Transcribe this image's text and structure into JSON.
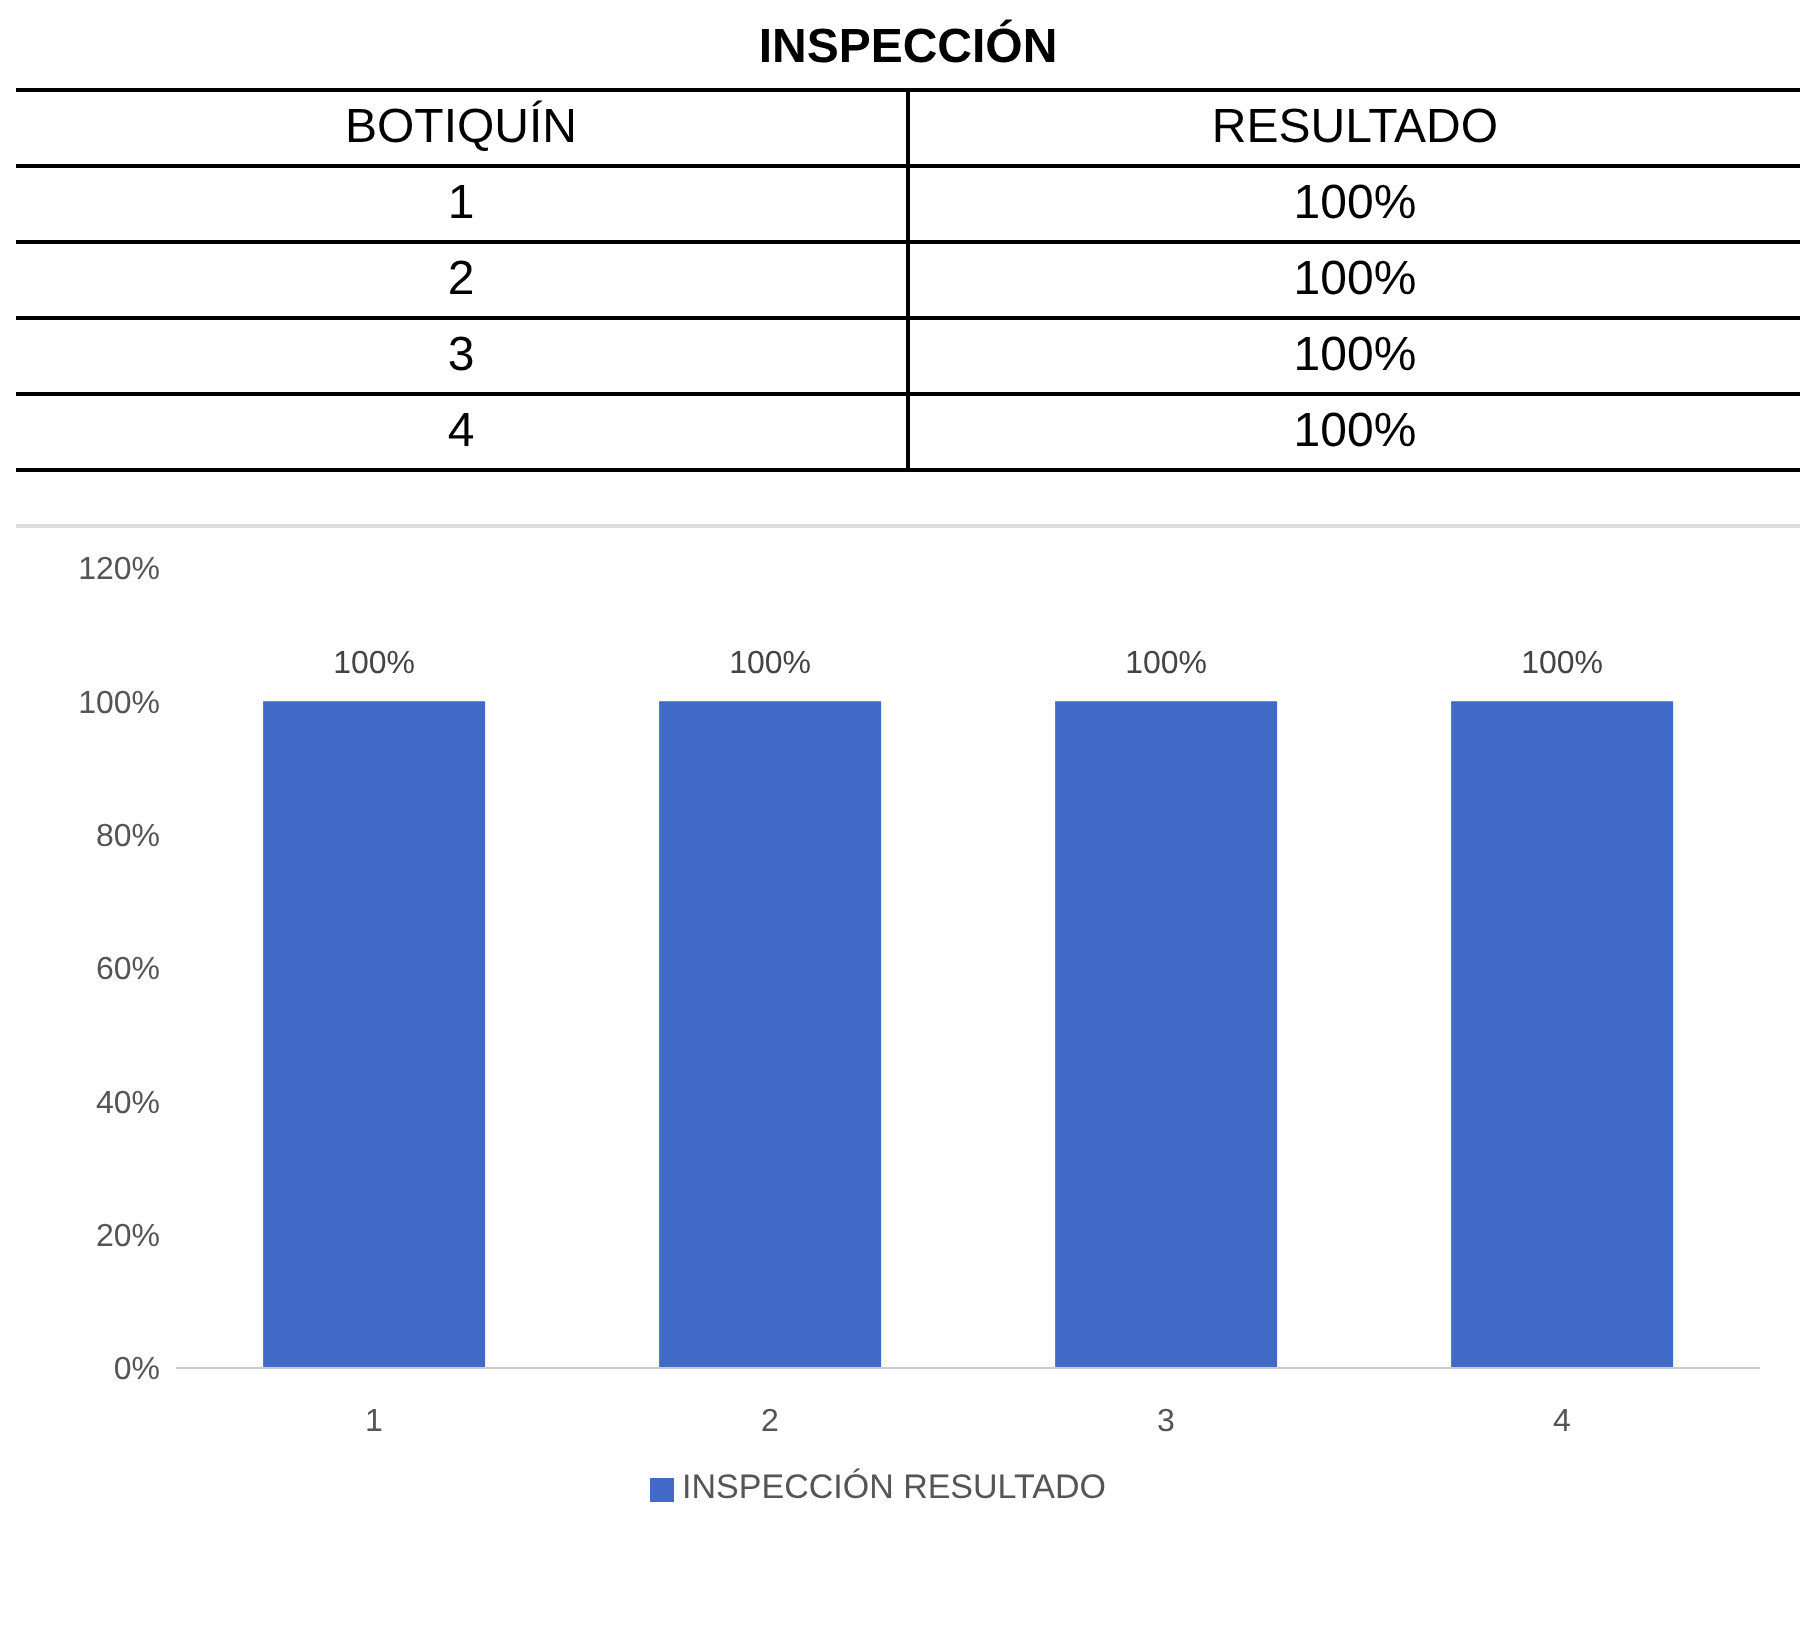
{
  "chart_data": {
    "type": "bar",
    "title": "INSPECCIÓN",
    "annotations": [
      "BOTIQUÍN",
      "RESULTADO"
    ],
    "categories": [
      "1",
      "2",
      "3",
      "4"
    ],
    "series": [
      {
        "name": "INSPECCIÓN RESULTADO",
        "color": "#4169c8",
        "values": [
          100,
          100,
          100,
          100
        ],
        "value_labels": [
          "100%",
          "100%",
          "100%",
          "100%"
        ]
      }
    ],
    "ylim": [
      0,
      120
    ],
    "yticks": [
      {
        "value": 0,
        "label": "0%"
      },
      {
        "value": 20,
        "label": "20%"
      },
      {
        "value": 40,
        "label": "40%"
      },
      {
        "value": 60,
        "label": "60%"
      },
      {
        "value": 80,
        "label": "80%"
      },
      {
        "value": 100,
        "label": "100%"
      },
      {
        "value": 120,
        "label": "120%"
      }
    ],
    "grid": false,
    "legend": "bottom"
  }
}
